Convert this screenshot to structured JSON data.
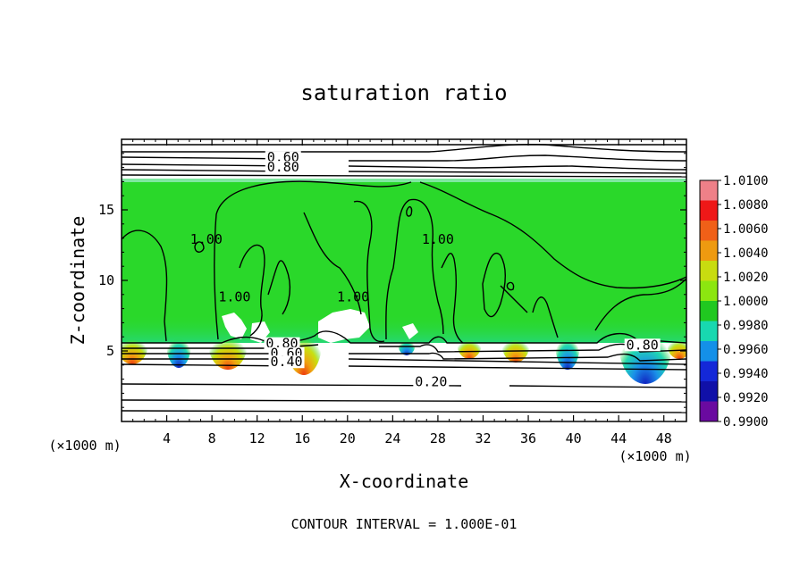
{
  "chart_data": {
    "type": "heatmap",
    "title": "saturation ratio",
    "xlabel": "X-coordinate",
    "ylabel": "Z-coordinate",
    "x_unit_left": "(×1000 m)",
    "x_unit_right": "(×1000 m)",
    "footer": "CONTOUR INTERVAL = 1.000E-01",
    "xlim": [
      0,
      50
    ],
    "ylim": [
      0,
      20
    ],
    "x_ticks": [
      4,
      8,
      12,
      16,
      20,
      24,
      28,
      32,
      36,
      40,
      44,
      48
    ],
    "y_ticks": [
      5,
      10,
      15
    ],
    "colorbar": {
      "labels": [
        "1.0100",
        "1.0080",
        "1.0060",
        "1.0040",
        "1.0020",
        "1.0000",
        "0.9980",
        "0.9960",
        "0.9940",
        "0.9920",
        "0.9900"
      ],
      "colors": [
        "#ee8088",
        "#ee1818",
        "#f06018",
        "#ee9a10",
        "#c8dc10",
        "#8ce610",
        "#20c820",
        "#18d8b0",
        "#1490e8",
        "#1428d8",
        "#1010a8",
        "#6a0aa0"
      ]
    },
    "field": {
      "cloud_base_km": 5.7,
      "cloud_top_km": 17.2,
      "background_value": 1.0005,
      "background_color": "#2ad82a"
    },
    "contour_labels": [
      {
        "text": "0.60",
        "x": 14.3,
        "z": 18.6
      },
      {
        "text": "0.80",
        "x": 14.3,
        "z": 17.9
      },
      {
        "text": "1.00",
        "x": 7.5,
        "z": 12.8
      },
      {
        "text": "1.00",
        "x": 10.0,
        "z": 8.7
      },
      {
        "text": "1.00",
        "x": 20.5,
        "z": 8.7
      },
      {
        "text": "1.00",
        "x": 28.0,
        "z": 12.8
      },
      {
        "text": "0.80",
        "x": 14.2,
        "z": 5.4
      },
      {
        "text": "0.60",
        "x": 14.6,
        "z": 4.7
      },
      {
        "text": "0.40",
        "x": 14.6,
        "z": 4.1
      },
      {
        "text": "0.20",
        "x": 27.4,
        "z": 2.7
      },
      {
        "text": "0.80",
        "x": 46.1,
        "z": 5.3
      }
    ]
  }
}
